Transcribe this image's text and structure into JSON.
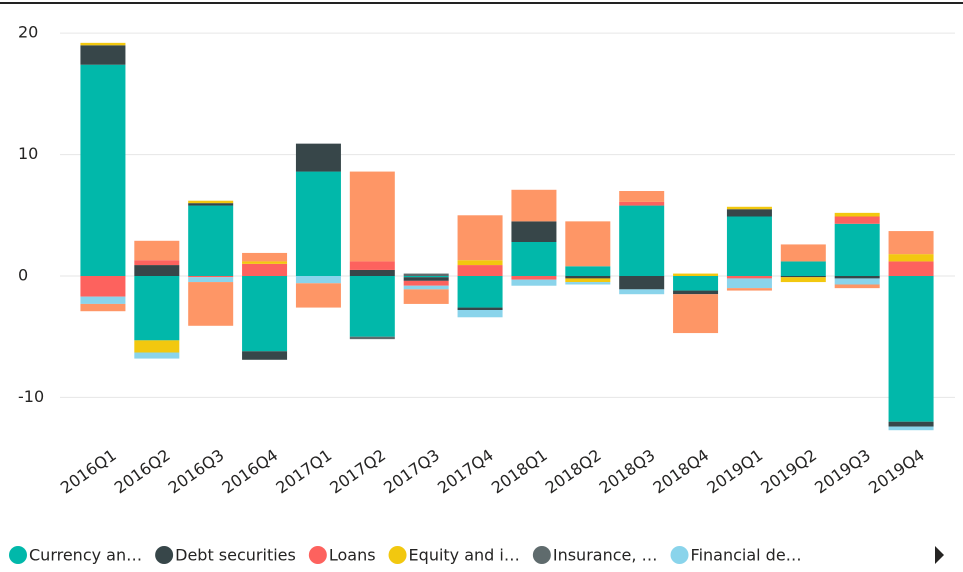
{
  "chart_data": {
    "type": "bar",
    "stacked": true,
    "categories": [
      "2016Q1",
      "2016Q2",
      "2016Q3",
      "2016Q4",
      "2017Q1",
      "2017Q2",
      "2017Q3",
      "2017Q4",
      "2018Q1",
      "2018Q2",
      "2018Q3",
      "2018Q4",
      "2019Q1",
      "2019Q2",
      "2019Q3",
      "2019Q4"
    ],
    "series": [
      {
        "name": "Currency an…",
        "color": "#01B8AA",
        "values": [
          17.4,
          -5.3,
          5.8,
          -6.2,
          8.6,
          -5.0,
          -0.1,
          -2.6,
          2.8,
          0.8,
          5.8,
          -1.2,
          4.9,
          1.2,
          4.3,
          -12.0
        ]
      },
      {
        "name": "Debt securities",
        "color": "#374649",
        "values": [
          1.6,
          0.9,
          0.2,
          -0.7,
          2.3,
          0.5,
          -0.3,
          -0.2,
          1.7,
          -0.2,
          -1.1,
          -0.3,
          0.6,
          -0.1,
          -0.2,
          -0.4
        ]
      },
      {
        "name": "Loans",
        "color": "#FD625E",
        "values": [
          -1.7,
          0.4,
          -0.1,
          1.0,
          0,
          0.7,
          -0.4,
          0.9,
          -0.3,
          0,
          0.3,
          0,
          -0.2,
          0,
          0.6,
          1.2
        ]
      },
      {
        "name": "Equity and i…",
        "color": "#F2C80F",
        "values": [
          0.2,
          -1.0,
          0.2,
          0.2,
          0,
          0,
          0,
          0.4,
          0,
          -0.3,
          0,
          0.2,
          0.2,
          -0.4,
          0.3,
          0.6
        ]
      },
      {
        "name": "Insurance, …",
        "color": "#5F6B6D",
        "values": [
          0,
          0,
          0,
          0,
          0,
          -0.2,
          0.2,
          0,
          0,
          0,
          0,
          0,
          0,
          0,
          0,
          0
        ]
      },
      {
        "name": "Financial de…",
        "color": "#8AD4EB",
        "values": [
          -0.6,
          -0.5,
          -0.4,
          0,
          -0.6,
          0,
          -0.3,
          -0.6,
          -0.5,
          -0.2,
          -0.4,
          0,
          -0.8,
          0,
          -0.5,
          -0.3
        ]
      },
      {
        "color": "#FE9666",
        "values": [
          -0.6,
          1.6,
          -3.6,
          0.7,
          -2.0,
          7.4,
          -1.2,
          3.7,
          2.6,
          3.7,
          0.9,
          -3.2,
          -0.2,
          1.4,
          -0.3,
          1.9
        ]
      }
    ],
    "ylim": [
      -14,
      21
    ],
    "yticks": [
      -10,
      0,
      10,
      20
    ],
    "grid": true
  }
}
